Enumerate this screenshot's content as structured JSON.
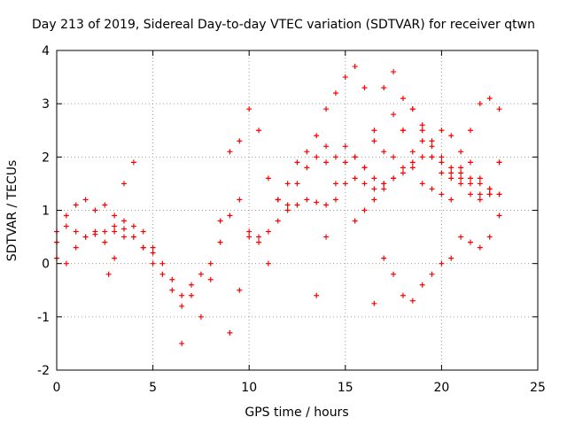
{
  "chart_data": {
    "type": "scatter",
    "title": "Day 213 of 2019, Sidereal Day-to-day VTEC variation (SDTVAR) for receiver qtwn",
    "xlabel": "GPS time / hours",
    "ylabel": "SDTVAR / TECUs",
    "xlim": [
      0,
      25
    ],
    "ylim": [
      -2,
      4
    ],
    "xticks": [
      "0",
      "5",
      "10",
      "15",
      "20",
      "25"
    ],
    "yticks": [
      "-2",
      "-1",
      "0",
      "1",
      "2",
      "3",
      "4"
    ],
    "grid": true,
    "marker": "+",
    "color": "#ff0000",
    "series": [
      {
        "x": [
          0.0,
          0.5,
          1.0,
          1.5,
          2.0,
          2.5,
          3.0,
          3.5,
          4.0,
          4.5,
          5.0,
          5.5,
          6.0,
          6.5,
          7.0,
          7.5,
          8.0,
          8.5,
          9.0,
          9.5,
          10.0,
          10.5,
          11.0,
          11.5,
          12.0,
          12.5,
          13.0,
          13.5,
          14.0,
          14.5,
          15.0,
          15.5,
          16.0,
          16.5,
          17.0,
          17.5,
          18.0,
          18.5,
          19.0,
          19.5,
          20.0,
          20.5,
          21.0,
          21.5,
          22.0,
          22.5,
          23.0
        ],
        "y": [
          0.6,
          0.7,
          0.6,
          0.5,
          0.55,
          0.6,
          0.7,
          0.65,
          0.5,
          0.3,
          0.2,
          0.0,
          -0.3,
          -0.6,
          -0.4,
          -0.2,
          0.0,
          0.4,
          0.9,
          1.2,
          0.6,
          0.5,
          0.6,
          0.8,
          1.0,
          1.1,
          1.2,
          1.15,
          1.1,
          1.2,
          1.5,
          1.6,
          1.5,
          1.4,
          1.5,
          1.6,
          1.7,
          1.9,
          2.0,
          2.0,
          1.9,
          1.8,
          1.7,
          1.6,
          1.5,
          1.4,
          1.3
        ]
      },
      {
        "x": [
          0.0,
          0.5,
          1.0,
          1.5,
          2.0,
          2.5,
          3.0,
          3.5,
          4.0
        ],
        "y": [
          0.4,
          0.9,
          1.1,
          1.2,
          1.0,
          1.1,
          0.9,
          1.5,
          1.9
        ]
      },
      {
        "x": [
          0.0,
          0.5,
          1.0,
          1.5,
          2.0,
          2.5,
          3.0,
          3.5,
          4.0,
          4.5,
          5.0
        ],
        "y": [
          0.1,
          0.0,
          0.3,
          0.5,
          0.6,
          0.4,
          0.6,
          0.8,
          0.5,
          0.3,
          0.0
        ]
      },
      {
        "x": [
          2.7,
          3.0,
          3.5,
          4.0,
          4.5,
          5.0,
          5.5,
          6.0,
          6.5
        ],
        "y": [
          -0.2,
          0.1,
          0.5,
          0.7,
          0.6,
          0.3,
          -0.2,
          -0.5,
          -0.8
        ]
      },
      {
        "x": [
          6.5,
          7.0,
          7.5,
          8.0,
          8.5,
          9.0,
          9.5,
          10.0,
          10.5
        ],
        "y": [
          -1.5,
          -0.6,
          -1.0,
          -0.3,
          0.8,
          2.1,
          2.3,
          2.9,
          2.5
        ]
      },
      {
        "x": [
          9.0,
          9.5,
          10.0,
          10.5,
          11.0,
          11.5,
          12.0,
          12.5,
          13.0,
          13.5,
          14.0
        ],
        "y": [
          -1.3,
          -0.5,
          0.5,
          0.4,
          1.6,
          1.2,
          1.1,
          1.5,
          1.8,
          2.0,
          1.9
        ]
      },
      {
        "x": [
          11.0,
          11.5,
          12.0,
          12.5,
          13.0,
          13.5,
          14.0,
          14.5,
          15.0,
          15.5,
          16.0,
          16.5,
          17.0,
          17.5,
          18.0,
          18.5,
          19.0,
          19.5,
          20.0,
          20.5,
          21.0,
          21.5,
          22.0,
          22.5,
          23.0
        ],
        "y": [
          0.0,
          1.2,
          1.5,
          1.9,
          2.1,
          2.4,
          2.2,
          2.0,
          1.9,
          2.0,
          1.8,
          1.6,
          1.4,
          1.6,
          1.8,
          2.1,
          2.3,
          2.0,
          1.7,
          1.6,
          1.8,
          1.5,
          1.3,
          1.4,
          1.9
        ]
      },
      {
        "x": [
          13.5,
          14.0,
          14.5,
          15.0,
          15.5,
          16.0,
          16.5,
          17.0,
          17.5,
          18.0,
          18.5,
          19.0,
          19.5,
          20.0,
          20.5,
          21.0,
          21.5,
          22.0,
          22.5,
          23.0
        ],
        "y": [
          -0.6,
          0.5,
          1.5,
          3.5,
          3.7,
          3.3,
          2.5,
          2.1,
          2.8,
          3.1,
          2.9,
          2.6,
          2.2,
          2.0,
          1.7,
          1.5,
          1.3,
          1.2,
          1.3,
          1.9
        ]
      },
      {
        "x": [
          14.0,
          14.5,
          15.0,
          15.5,
          16.0,
          16.5,
          17.0,
          17.5,
          18.0,
          18.5,
          19.0,
          19.5,
          20.0,
          20.5,
          21.0,
          21.5,
          22.0,
          22.5,
          23.0
        ],
        "y": [
          2.9,
          3.2,
          2.2,
          2.0,
          1.8,
          2.3,
          3.3,
          3.6,
          2.5,
          1.8,
          1.5,
          1.4,
          1.3,
          1.2,
          1.6,
          2.5,
          3.0,
          3.1,
          2.9
        ]
      },
      {
        "x": [
          15.5,
          16.0,
          16.5,
          17.0,
          17.5,
          18.0,
          18.5,
          19.0,
          19.5,
          20.0,
          20.5,
          21.0,
          21.5,
          22.0,
          22.5,
          23.0
        ],
        "y": [
          0.8,
          1.0,
          1.2,
          1.5,
          2.0,
          2.5,
          2.9,
          2.5,
          2.3,
          2.5,
          2.4,
          2.1,
          1.9,
          1.6,
          1.3,
          1.3
        ]
      },
      {
        "x": [
          16.5,
          17.0,
          17.5,
          18.0,
          18.5,
          19.0,
          19.5,
          20.0,
          20.5
        ],
        "y": [
          -0.75,
          0.1,
          -0.2,
          -0.6,
          -0.7,
          -0.4,
          -0.2,
          0.0,
          0.1
        ]
      },
      {
        "x": [
          21.0,
          21.5,
          22.0,
          22.5,
          23.0
        ],
        "y": [
          0.5,
          0.4,
          0.3,
          0.5,
          0.9
        ]
      }
    ]
  }
}
